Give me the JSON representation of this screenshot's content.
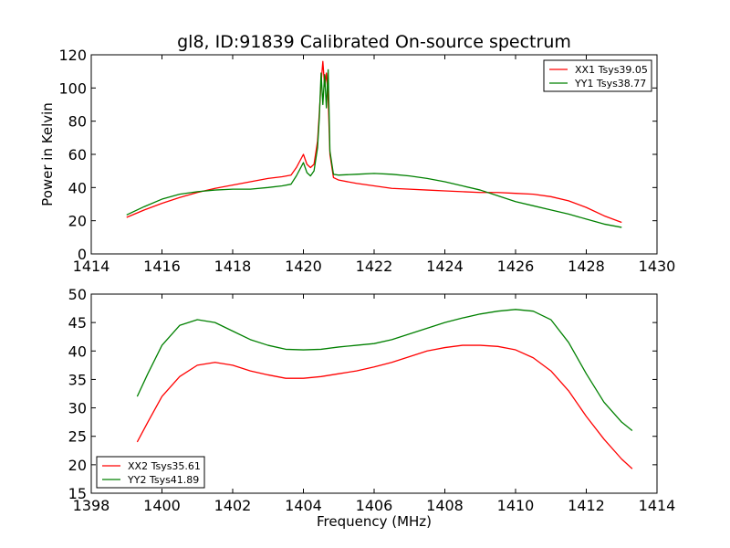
{
  "chart_data": [
    {
      "type": "line",
      "title": "gl8, ID:91839 Calibrated On-source spectrum",
      "xlabel": "",
      "ylabel": "Power in Kelvin",
      "xlim": [
        1414,
        1430
      ],
      "ylim": [
        0,
        120
      ],
      "xticks": [
        "1414",
        "1416",
        "1418",
        "1420",
        "1422",
        "1424",
        "1426",
        "1428",
        "1430"
      ],
      "yticks": [
        "0",
        "20",
        "40",
        "60",
        "80",
        "100",
        "120"
      ],
      "grid": false,
      "legend_position": "top-right",
      "series": [
        {
          "name": "XX1 Tsys39.05",
          "color": "#ff0000",
          "x": [
            1415.0,
            1415.5,
            1416.0,
            1416.5,
            1417.0,
            1417.5,
            1418.0,
            1418.5,
            1419.0,
            1419.4,
            1419.65,
            1419.8,
            1420.0,
            1420.1,
            1420.2,
            1420.3,
            1420.4,
            1420.45,
            1420.5,
            1420.55,
            1420.6,
            1420.65,
            1420.7,
            1420.75,
            1420.85,
            1421.0,
            1421.5,
            1422.0,
            1422.5,
            1423.0,
            1423.5,
            1424.0,
            1424.5,
            1425.0,
            1425.5,
            1426.0,
            1426.5,
            1427.0,
            1427.5,
            1428.0,
            1428.5,
            1429.0
          ],
          "y": [
            22,
            26.5,
            30.5,
            34,
            37,
            39.5,
            41.5,
            43.5,
            45.5,
            46.5,
            47.5,
            52,
            60,
            54,
            52,
            54,
            68,
            85,
            103,
            116,
            101,
            109,
            94,
            60,
            46,
            44.5,
            42.5,
            41,
            39.5,
            39,
            38.5,
            38,
            37.5,
            37,
            37,
            36.5,
            36,
            34.5,
            32,
            28,
            23,
            19
          ]
        },
        {
          "name": "YY1 Tsys38.77",
          "color": "#008000",
          "x": [
            1415.0,
            1415.5,
            1416.0,
            1416.5,
            1417.0,
            1417.5,
            1418.0,
            1418.5,
            1419.0,
            1419.4,
            1419.65,
            1419.8,
            1420.0,
            1420.1,
            1420.2,
            1420.3,
            1420.4,
            1420.45,
            1420.5,
            1420.55,
            1420.6,
            1420.65,
            1420.7,
            1420.75,
            1420.85,
            1421.0,
            1421.5,
            1422.0,
            1422.5,
            1423.0,
            1423.5,
            1424.0,
            1424.5,
            1425.0,
            1425.5,
            1426.0,
            1426.5,
            1427.0,
            1427.5,
            1428.0,
            1428.5,
            1429.0
          ],
          "y": [
            23.5,
            28.5,
            33,
            36,
            37.5,
            38.5,
            39,
            39,
            40,
            41,
            42,
            47,
            55,
            49,
            47,
            50,
            64,
            82,
            109,
            90,
            108,
            88,
            111,
            62,
            48,
            47.5,
            48,
            48.5,
            48,
            47,
            45.5,
            43.5,
            41,
            38.5,
            35,
            31.5,
            29,
            26.5,
            24,
            21,
            18,
            16
          ]
        }
      ]
    },
    {
      "type": "line",
      "title": "",
      "xlabel": "Frequency (MHz)",
      "ylabel": "",
      "xlim": [
        1398,
        1414
      ],
      "ylim": [
        15,
        50
      ],
      "xticks": [
        "1398",
        "1400",
        "1402",
        "1404",
        "1406",
        "1408",
        "1410",
        "1412",
        "1414"
      ],
      "yticks": [
        "15",
        "20",
        "25",
        "30",
        "35",
        "40",
        "45",
        "50"
      ],
      "grid": false,
      "legend_position": "bottom-left",
      "series": [
        {
          "name": "XX2 Tsys35.61",
          "color": "#ff0000",
          "x": [
            1399.3,
            1399.6,
            1400.0,
            1400.5,
            1401.0,
            1401.5,
            1402.0,
            1402.5,
            1403.0,
            1403.5,
            1404.0,
            1404.5,
            1405.0,
            1405.5,
            1406.0,
            1406.5,
            1407.0,
            1407.5,
            1408.0,
            1408.5,
            1409.0,
            1409.5,
            1410.0,
            1410.5,
            1411.0,
            1411.5,
            1412.0,
            1412.5,
            1413.0,
            1413.3
          ],
          "y": [
            24,
            27.5,
            32,
            35.5,
            37.5,
            38,
            37.5,
            36.5,
            35.8,
            35.2,
            35.2,
            35.5,
            36,
            36.5,
            37.2,
            38,
            39,
            40,
            40.6,
            41,
            41,
            40.8,
            40.2,
            38.8,
            36.5,
            33,
            28.5,
            24.5,
            21,
            19.3
          ]
        },
        {
          "name": "YY2 Tsys41.89",
          "color": "#008000",
          "x": [
            1399.3,
            1399.6,
            1400.0,
            1400.5,
            1401.0,
            1401.5,
            1402.0,
            1402.5,
            1403.0,
            1403.5,
            1404.0,
            1404.5,
            1405.0,
            1405.5,
            1406.0,
            1406.5,
            1407.0,
            1407.5,
            1408.0,
            1408.5,
            1409.0,
            1409.5,
            1410.0,
            1410.5,
            1411.0,
            1411.5,
            1412.0,
            1412.5,
            1413.0,
            1413.3
          ],
          "y": [
            32,
            36,
            41,
            44.5,
            45.5,
            45,
            43.5,
            42,
            41,
            40.3,
            40.2,
            40.3,
            40.7,
            41,
            41.3,
            42,
            43,
            44,
            45,
            45.8,
            46.5,
            47,
            47.3,
            47,
            45.5,
            41.5,
            36,
            31,
            27.5,
            26
          ]
        }
      ]
    }
  ]
}
